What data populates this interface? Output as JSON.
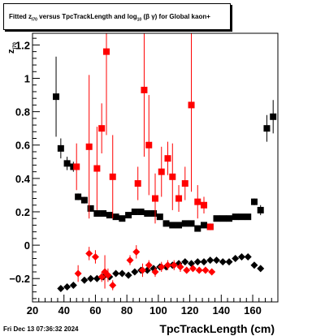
{
  "header": {
    "title_prefix": "Fitted  z",
    "title_sub1": "I70",
    "title_mid": "  versus  TpcTrackLength and log",
    "title_sub2": "10",
    "title_suffix": " (β  γ)  for Global kaon+"
  },
  "footer": {
    "date": "Fri Dec 13 07:36:32 2024"
  },
  "chart_data": {
    "type": "scatter",
    "xlabel": "TpcTrackLength (cm)",
    "ylabel": "z",
    "ylabel_sub": "I70",
    "xlim": [
      20,
      176
    ],
    "ylim": [
      -0.34,
      1.27
    ],
    "x_ticks": [
      20,
      40,
      60,
      80,
      100,
      120,
      140,
      160
    ],
    "y_ticks": [
      -0.2,
      0,
      0.2,
      0.4,
      0.6,
      0.8,
      1,
      1.2
    ],
    "x_tick_labels": [
      "20",
      "40",
      "60",
      "80",
      "100",
      "120",
      "140",
      "160"
    ],
    "y_tick_labels": [
      "−0.2",
      "0",
      "0.2",
      "0.4",
      "0.6",
      "0.8",
      "1",
      "1.2"
    ],
    "grid": false,
    "series": [
      {
        "marker": "square",
        "color": "#000000",
        "points": [
          [
            35,
            0.89,
            0.24
          ],
          [
            38,
            0.58,
            0.06
          ],
          [
            42,
            0.49,
            0.04
          ],
          [
            46,
            0.47,
            0.03
          ],
          [
            49,
            0.29,
            0.02
          ],
          [
            53,
            0.27,
            0.02
          ],
          [
            57,
            0.22,
            0.01
          ],
          [
            61,
            0.19,
            0.01
          ],
          [
            65,
            0.19,
            0.01
          ],
          [
            69,
            0.18,
            0.01
          ],
          [
            73,
            0.17,
            0.01
          ],
          [
            77,
            0.16,
            0.01
          ],
          [
            81,
            0.18,
            0.01
          ],
          [
            85,
            0.2,
            0.01
          ],
          [
            89,
            0.2,
            0.01
          ],
          [
            93,
            0.19,
            0.01
          ],
          [
            97,
            0.19,
            0.01
          ],
          [
            101,
            0.17,
            0.01
          ],
          [
            105,
            0.13,
            0.01
          ],
          [
            109,
            0.12,
            0.01
          ],
          [
            113,
            0.12,
            0.01
          ],
          [
            117,
            0.13,
            0.01
          ],
          [
            121,
            0.13,
            0.01
          ],
          [
            125,
            0.1,
            0.01
          ],
          [
            129,
            0.12,
            0.01
          ],
          [
            133,
            0.11,
            0.01
          ],
          [
            137,
            0.16,
            0.01
          ],
          [
            141,
            0.16,
            0.01
          ],
          [
            145,
            0.16,
            0.01
          ],
          [
            149,
            0.17,
            0.01
          ],
          [
            153,
            0.17,
            0.01
          ],
          [
            157,
            0.17,
            0.01
          ],
          [
            161,
            0.26,
            0.02
          ],
          [
            165,
            0.21,
            0.03
          ],
          [
            169,
            0.7,
            0.08
          ],
          [
            173,
            0.77,
            0.1
          ]
        ]
      },
      {
        "marker": "square",
        "color": "#ff0000",
        "points": [
          [
            48,
            0.47,
            0.14
          ],
          [
            56,
            0.59,
            0.43
          ],
          [
            61,
            0.46,
            0.25
          ],
          [
            64,
            0.7,
            0.15
          ],
          [
            67,
            1.16,
            0.5
          ],
          [
            71,
            0.41,
            0.25
          ],
          [
            87,
            0.37,
            0.1
          ],
          [
            91,
            0.93,
            0.4
          ],
          [
            94,
            0.6,
            0.3
          ],
          [
            98,
            0.28,
            0.15
          ],
          [
            102,
            0.44,
            0.15
          ],
          [
            106,
            0.52,
            0.1
          ],
          [
            109,
            0.41,
            0.2
          ],
          [
            113,
            0.28,
            0.08
          ],
          [
            117,
            0.37,
            0.1
          ],
          [
            121,
            0.84,
            0.52
          ],
          [
            125,
            0.26,
            0.1
          ],
          [
            129,
            0.24,
            0.05
          ],
          [
            133,
            0.11,
            0.02
          ]
        ]
      },
      {
        "marker": "diamond",
        "color": "#000000",
        "points": [
          [
            38,
            -0.26,
            0.005
          ],
          [
            42,
            -0.25,
            0.005
          ],
          [
            46,
            -0.24,
            0.005
          ],
          [
            53,
            -0.21,
            0.005
          ],
          [
            57,
            -0.2,
            0.005
          ],
          [
            61,
            -0.2,
            0.005
          ],
          [
            65,
            -0.19,
            0.005
          ],
          [
            69,
            -0.19,
            0.005
          ],
          [
            73,
            -0.17,
            0.005
          ],
          [
            77,
            -0.17,
            0.005
          ],
          [
            81,
            -0.18,
            0.005
          ],
          [
            85,
            -0.16,
            0.005
          ],
          [
            89,
            -0.15,
            0.005
          ],
          [
            93,
            -0.15,
            0.005
          ],
          [
            97,
            -0.14,
            0.005
          ],
          [
            101,
            -0.13,
            0.005
          ],
          [
            105,
            -0.13,
            0.005
          ],
          [
            109,
            -0.12,
            0.005
          ],
          [
            113,
            -0.11,
            0.005
          ],
          [
            117,
            -0.1,
            0.005
          ],
          [
            121,
            -0.11,
            0.005
          ],
          [
            125,
            -0.1,
            0.005
          ],
          [
            129,
            -0.1,
            0.005
          ],
          [
            133,
            -0.09,
            0.005
          ],
          [
            137,
            -0.09,
            0.005
          ],
          [
            141,
            -0.1,
            0.005
          ],
          [
            145,
            -0.1,
            0.005
          ],
          [
            149,
            -0.08,
            0.005
          ],
          [
            153,
            -0.07,
            0.005
          ],
          [
            157,
            -0.07,
            0.005
          ],
          [
            161,
            -0.12,
            0.005
          ],
          [
            165,
            -0.14,
            0.005
          ]
        ]
      },
      {
        "marker": "diamond",
        "color": "#ff0000",
        "points": [
          [
            49,
            -0.17,
            0.05
          ],
          [
            56,
            -0.05,
            0.04
          ],
          [
            60,
            -0.07,
            0.04
          ],
          [
            64,
            -0.19,
            0.03
          ],
          [
            66,
            -0.16,
            0.1
          ],
          [
            68,
            -0.18,
            0.04
          ],
          [
            71,
            -0.24,
            0.03
          ],
          [
            82,
            -0.09,
            0.03
          ],
          [
            86,
            -0.04,
            0.04
          ],
          [
            90,
            -0.15,
            0.04
          ],
          [
            94,
            -0.12,
            0.03
          ],
          [
            98,
            -0.16,
            0.03
          ],
          [
            102,
            -0.13,
            0.03
          ],
          [
            106,
            -0.12,
            0.03
          ],
          [
            110,
            -0.12,
            0.03
          ],
          [
            114,
            -0.13,
            0.03
          ],
          [
            118,
            -0.15,
            0.02
          ],
          [
            122,
            -0.14,
            0.02
          ],
          [
            126,
            -0.15,
            0.02
          ],
          [
            130,
            -0.15,
            0.02
          ],
          [
            134,
            -0.16,
            0.02
          ]
        ]
      }
    ]
  }
}
